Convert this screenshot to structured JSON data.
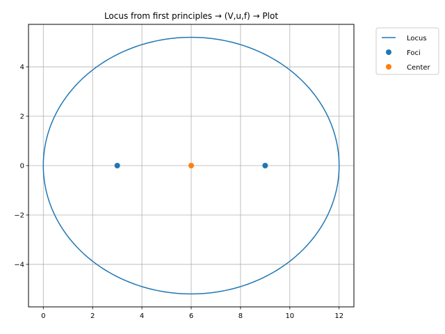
{
  "chart_data": {
    "type": "scatter",
    "title": "Locus from first principles → (V,u,f) → Plot",
    "xlabel": "",
    "ylabel": "",
    "xlim": [
      -0.6,
      12.6
    ],
    "ylim": [
      -5.72,
      5.72
    ],
    "xticks": [
      0,
      2,
      4,
      6,
      8,
      10,
      12
    ],
    "yticks": [
      -4,
      -2,
      0,
      2,
      4
    ],
    "grid": true,
    "legend_position": "outside-top-right",
    "series": [
      {
        "name": "Locus",
        "kind": "line",
        "shape": "ellipse",
        "center": [
          6,
          0
        ],
        "semi_major": 6,
        "semi_minor": 5.196,
        "color": "#1f77b4"
      },
      {
        "name": "Foci",
        "kind": "scatter",
        "points": [
          [
            3,
            0
          ],
          [
            9,
            0
          ]
        ],
        "color": "#1f77b4"
      },
      {
        "name": "Center",
        "kind": "scatter",
        "points": [
          [
            6,
            0
          ]
        ],
        "color": "#ff7f0e"
      }
    ]
  }
}
